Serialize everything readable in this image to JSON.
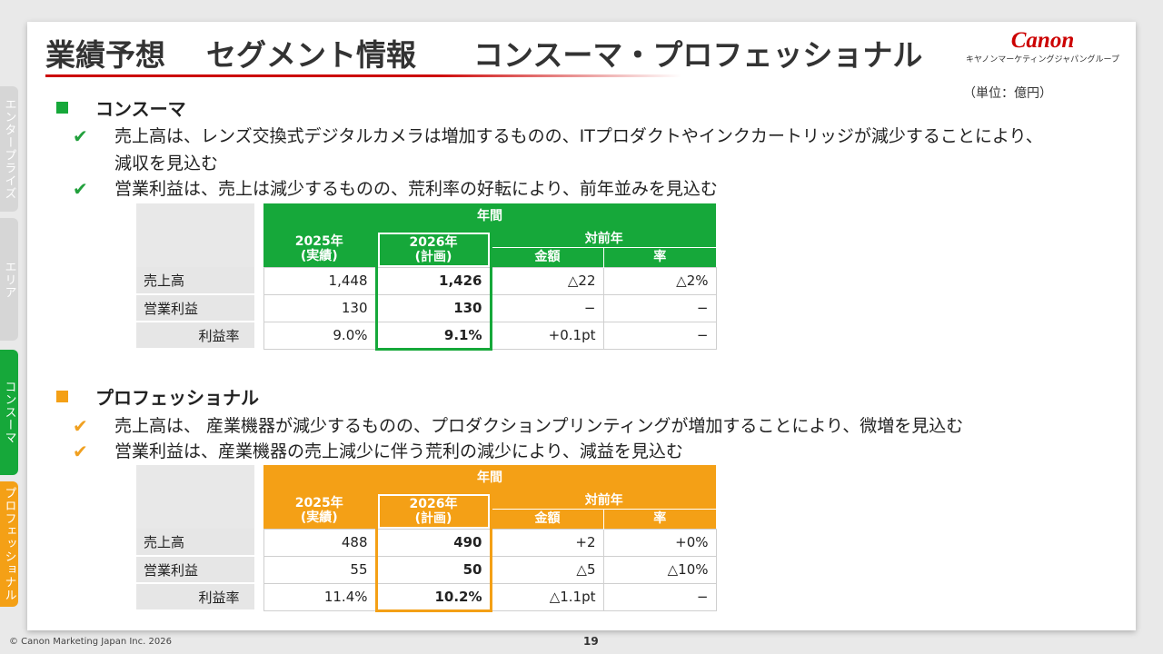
{
  "title": {
    "part1": "業績予想",
    "part2": "セグメント情報",
    "part3": "コンスーマ・プロフェッショナル"
  },
  "logo": {
    "brand": "Canon",
    "sub": "キヤノンマーケティングジャパングループ"
  },
  "unit": "（単位：億円）",
  "tabs": {
    "enterprise": "エンタープライズ",
    "area": "エリア",
    "consumer": "コンスーマ",
    "professional": "プロフェッショナル"
  },
  "colors": {
    "consumer": "#16a83a",
    "professional": "#f4a016",
    "brand": "#cc0000"
  },
  "consumer": {
    "heading": "コンスーマ",
    "bullets": [
      "売上高は、レンズ交換式デジタルカメラは増加するものの、ITプロダクトやインクカートリッジが減少することにより、",
      "減収を見込む",
      "営業利益は、売上は減少するものの、荒利率の好転により、前年並みを見込む"
    ],
    "table": {
      "h_year": "年間",
      "h_2025": "2025年",
      "h_2025_sub": "(実績)",
      "h_2026": "2026年",
      "h_2026_sub": "(計画)",
      "h_yoy": "対前年",
      "h_amount": "金額",
      "h_rate": "率",
      "rows": [
        {
          "label": "売上高",
          "v2025": "1,448",
          "v2026": "1,426",
          "amount": "△22",
          "rate": "△2%"
        },
        {
          "label": "営業利益",
          "v2025": "130",
          "v2026": "130",
          "amount": "−",
          "rate": "−"
        },
        {
          "label": "利益率",
          "v2025": "9.0%",
          "v2026": "9.1%",
          "amount": "+0.1pt",
          "rate": "−"
        }
      ]
    }
  },
  "professional": {
    "heading": "プロフェッショナル",
    "bullets": [
      "売上高は、 産業機器が減少するものの、プロダクションプリンティングが増加することにより、微増を見込む",
      "営業利益は、産業機器の売上減少に伴う荒利の減少により、減益を見込む"
    ],
    "table": {
      "h_year": "年間",
      "h_2025": "2025年",
      "h_2025_sub": "(実績)",
      "h_2026": "2026年",
      "h_2026_sub": "(計画)",
      "h_yoy": "対前年",
      "h_amount": "金額",
      "h_rate": "率",
      "rows": [
        {
          "label": "売上高",
          "v2025": "488",
          "v2026": "490",
          "amount": "+2",
          "rate": "+0%"
        },
        {
          "label": "営業利益",
          "v2025": "55",
          "v2026": "50",
          "amount": "△5",
          "rate": "△10%"
        },
        {
          "label": "利益率",
          "v2025": "11.4%",
          "v2026": "10.2%",
          "amount": "△1.1pt",
          "rate": "−"
        }
      ]
    }
  },
  "footer": "© Canon Marketing Japan Inc. 2026",
  "page_number": "19"
}
